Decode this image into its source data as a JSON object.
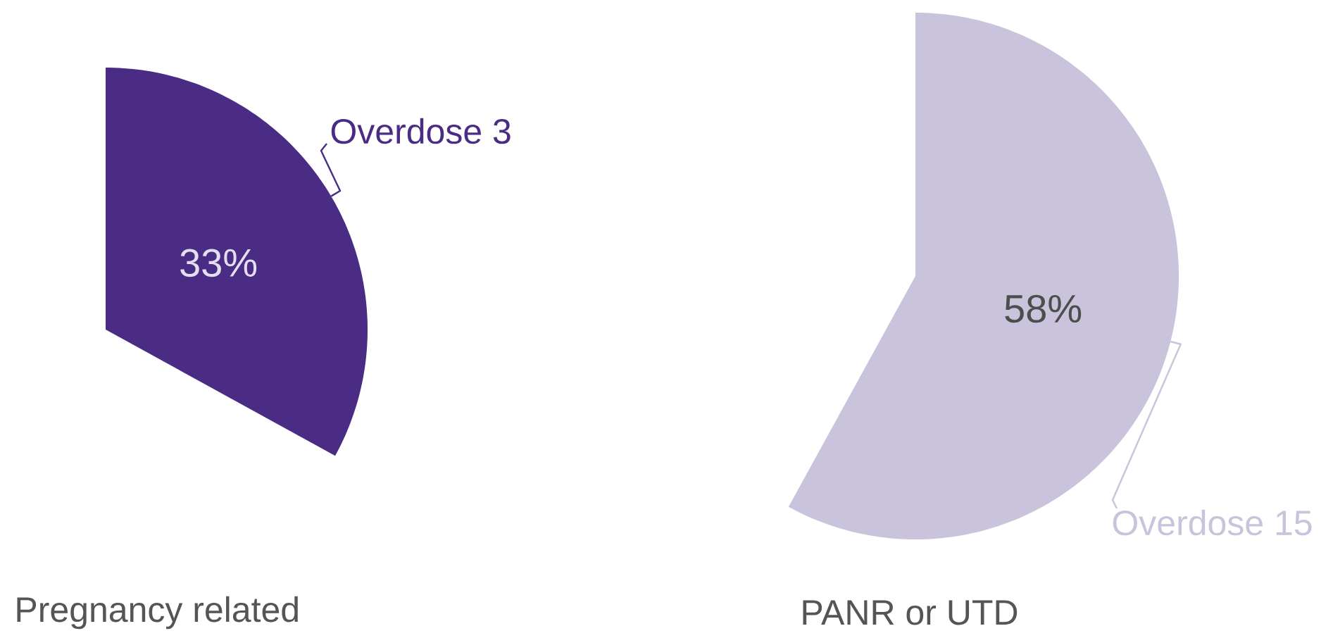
{
  "chart_data": [
    {
      "type": "pie",
      "title": "Pregnancy related",
      "categories": [
        "Overdose 3"
      ],
      "values": [
        33
      ],
      "value_labels": [
        "33%"
      ],
      "colors": [
        "#4a2c85"
      ]
    },
    {
      "type": "pie",
      "title": "PANR or UTD",
      "categories": [
        "Overdose 15"
      ],
      "values": [
        58
      ],
      "value_labels": [
        "58%"
      ],
      "colors": [
        "#c9c3dc"
      ]
    }
  ]
}
